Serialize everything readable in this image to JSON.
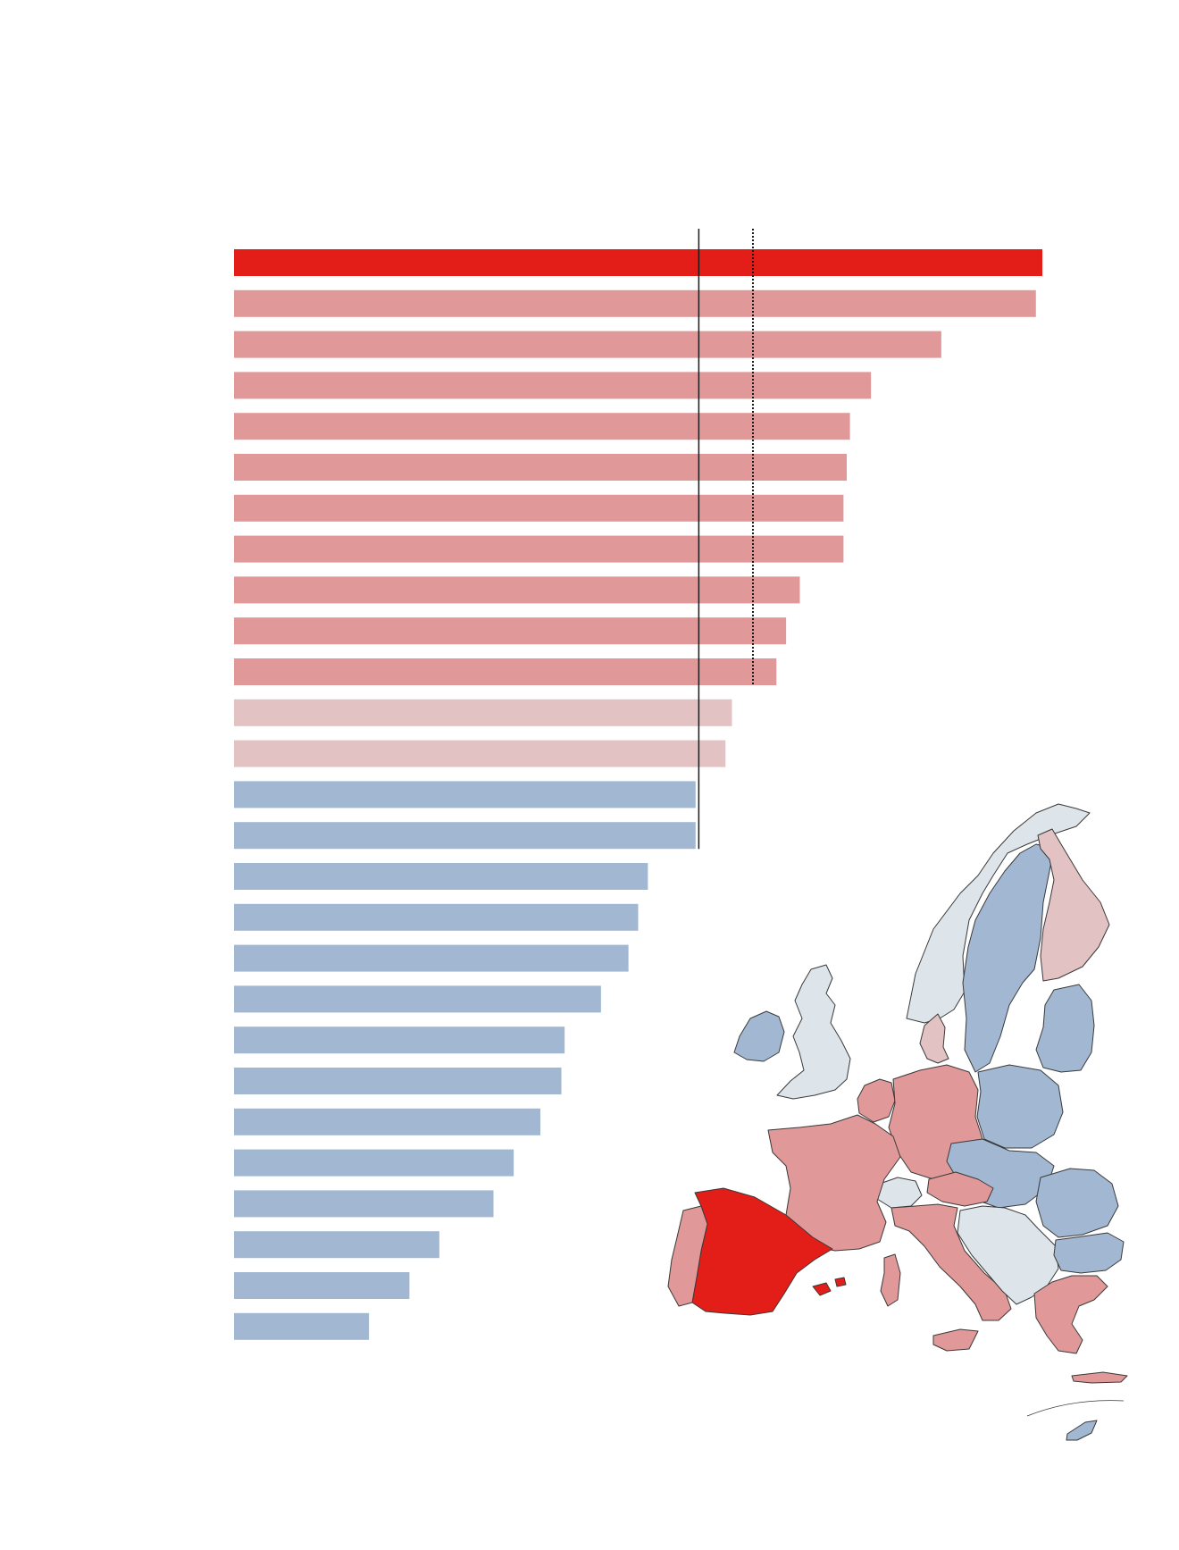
{
  "colors": {
    "top": "#e31d17",
    "above_ref": "#e09898",
    "slightly_above": "#e3c2c3",
    "below": "#a2b8d2",
    "no_data": "#dde5ea",
    "ref_line": "#1a1a1a"
  },
  "chart_data": {
    "type": "bar",
    "orientation": "horizontal",
    "title": "",
    "xlabel": "",
    "ylabel": "",
    "xlim": [
      0,
      100
    ],
    "grid": false,
    "legend": "none",
    "categories": [
      "",
      "",
      "",
      "",
      "",
      "",
      "",
      "",
      "",
      "",
      "",
      "",
      "",
      "",
      "",
      "",
      "",
      "",
      "",
      "",
      "",
      "",
      "",
      "",
      "",
      "",
      ""
    ],
    "values": [
      100,
      99.2,
      87.5,
      78.8,
      76.2,
      75.8,
      75.4,
      75.4,
      70.0,
      68.3,
      67.1,
      61.6,
      60.8,
      57.1,
      57.1,
      51.2,
      50.0,
      48.8,
      45.4,
      40.9,
      40.5,
      37.9,
      34.6,
      32.1,
      25.4,
      21.7,
      16.7
    ],
    "groups": [
      "top",
      "above_ref",
      "above_ref",
      "above_ref",
      "above_ref",
      "above_ref",
      "above_ref",
      "above_ref",
      "above_ref",
      "above_ref",
      "above_ref",
      "slightly_above",
      "slightly_above",
      "below",
      "below",
      "below",
      "below",
      "below",
      "below",
      "below",
      "below",
      "below",
      "below",
      "below",
      "below",
      "below",
      "below"
    ],
    "reference_lines": [
      {
        "value": 57.5,
        "style": "solid"
      },
      {
        "value": 64.2,
        "style": "dotted"
      }
    ]
  },
  "map": {
    "regions": [
      {
        "id": "spain",
        "group": "top"
      },
      {
        "id": "portugal",
        "group": "above_ref"
      },
      {
        "id": "france",
        "group": "above_ref"
      },
      {
        "id": "italy",
        "group": "above_ref"
      },
      {
        "id": "germany",
        "group": "above_ref"
      },
      {
        "id": "austria",
        "group": "above_ref"
      },
      {
        "id": "greece",
        "group": "above_ref"
      },
      {
        "id": "benelux",
        "group": "above_ref"
      },
      {
        "id": "finland",
        "group": "slightly_above"
      },
      {
        "id": "denmark",
        "group": "slightly_above"
      },
      {
        "id": "sweden",
        "group": "below"
      },
      {
        "id": "poland",
        "group": "below"
      },
      {
        "id": "baltics",
        "group": "below"
      },
      {
        "id": "central-east",
        "group": "below"
      },
      {
        "id": "romania",
        "group": "below"
      },
      {
        "id": "bulgaria",
        "group": "below"
      },
      {
        "id": "ireland",
        "group": "below"
      },
      {
        "id": "cyprus",
        "group": "below"
      },
      {
        "id": "uk",
        "group": "no_data"
      },
      {
        "id": "norway",
        "group": "no_data"
      },
      {
        "id": "switzerland",
        "group": "no_data"
      },
      {
        "id": "balkans",
        "group": "no_data"
      }
    ]
  }
}
